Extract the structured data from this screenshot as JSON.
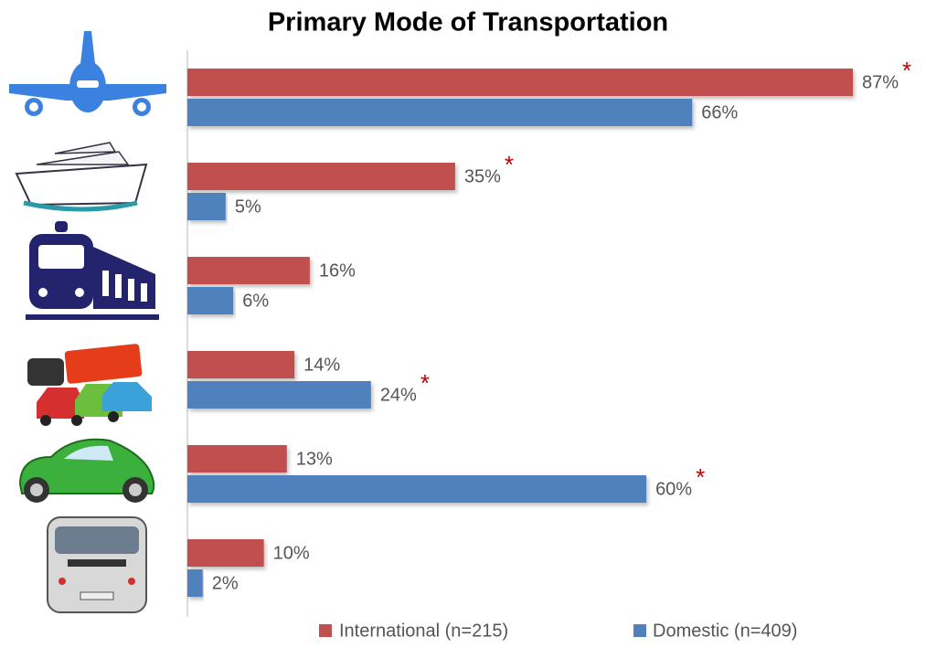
{
  "chart_data": {
    "type": "bar",
    "orientation": "horizontal",
    "title": "Primary Mode of Transportation",
    "categories": [
      null,
      null,
      null,
      null,
      null,
      null
    ],
    "series": [
      {
        "name": "International (n=215)",
        "color": "#c0504d",
        "values": [
          87,
          35,
          16,
          14,
          13,
          10
        ],
        "value_labels": [
          "87%",
          "35%",
          "16%",
          "14%",
          "13%",
          "10%"
        ],
        "markers": [
          "*",
          "*",
          null,
          null,
          null,
          null
        ]
      },
      {
        "name": "Domestic (n=409)",
        "color": "#4f81bd",
        "values": [
          66,
          5,
          6,
          24,
          60,
          2
        ],
        "value_labels": [
          "66%",
          "5%",
          "6%",
          "24%",
          "60%",
          "2%"
        ],
        "markers": [
          null,
          null,
          null,
          "*",
          "*",
          null
        ]
      }
    ],
    "legend": "bottom"
  }
}
